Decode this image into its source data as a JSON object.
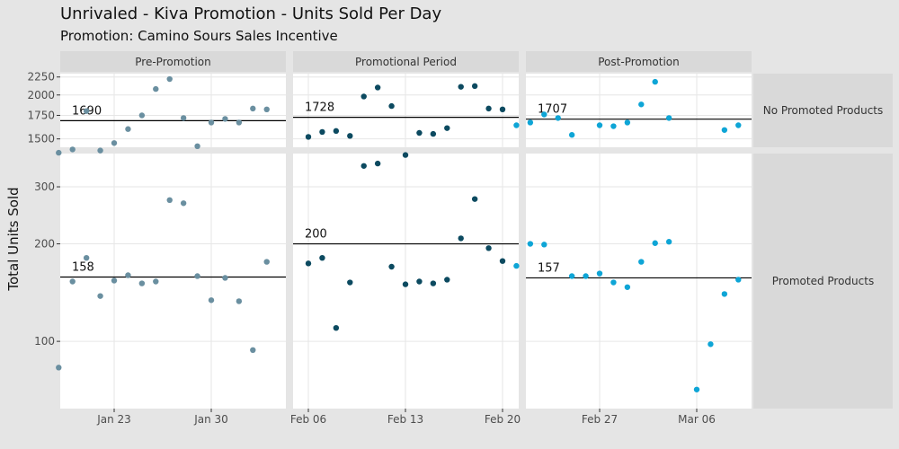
{
  "chart_data": {
    "type": "scatter",
    "title": "Unrivaled - Kiva Promotion - Units Sold Per Day",
    "subtitle": "Promotion: Camino Sours Sales Incentive",
    "ylabel": "Total Units Sold",
    "xlabel": "",
    "y_scale": "log",
    "grid": true,
    "legend": "none",
    "columns": [
      "Pre-Promotion",
      "Promotional Period",
      "Post-Promotion"
    ],
    "rows": [
      "No Promoted Products",
      "Promoted Products"
    ],
    "x_ticks": [
      {
        "date": "2023-01-23",
        "label": "Jan 23"
      },
      {
        "date": "2023-01-30",
        "label": "Jan 30"
      },
      {
        "date": "2023-02-06",
        "label": "Feb 06"
      },
      {
        "date": "2023-02-13",
        "label": "Feb 13"
      },
      {
        "date": "2023-02-20",
        "label": "Feb 20"
      },
      {
        "date": "2023-02-27",
        "label": "Feb 27"
      },
      {
        "date": "2023-03-06",
        "label": "Mar 06"
      }
    ],
    "row_scales": [
      {
        "ylim": [
          1420,
          2300
        ],
        "ticks": [
          1500,
          1750,
          2000,
          2250
        ],
        "tick_labels": [
          "1500",
          "1750",
          "2000",
          "2250"
        ]
      },
      {
        "ylim": [
          62,
          380
        ],
        "ticks": [
          100,
          200,
          300
        ],
        "tick_labels": [
          "100",
          "200",
          "300"
        ]
      }
    ],
    "colors": {
      "Pre-Promotion": "#6a8fa0",
      "Promotional Period": "#0c4a60",
      "Post-Promotion": "#0ea5d6"
    },
    "panels": [
      {
        "row": "No Promoted Products",
        "column": "Pre-Promotion",
        "mean": 1690,
        "mean_label": "1690",
        "x": [
          "2023-01-19",
          "2023-01-20",
          "2023-01-21",
          "2023-01-22",
          "2023-01-23",
          "2023-01-24",
          "2023-01-25",
          "2023-01-26",
          "2023-01-27",
          "2023-01-28",
          "2023-01-29",
          "2023-01-30",
          "2023-01-31",
          "2023-02-01",
          "2023-02-02",
          "2023-02-03"
        ],
        "y": [
          1370,
          1400,
          1800,
          1390,
          1460,
          1600,
          1750,
          2080,
          2220,
          1720,
          1430,
          1670,
          1710,
          1670,
          1830,
          1820
        ]
      },
      {
        "row": "No Promoted Products",
        "column": "Promotional Period",
        "mean": 1728,
        "mean_label": "1728",
        "x": [
          "2023-02-06",
          "2023-02-07",
          "2023-02-08",
          "2023-02-09",
          "2023-02-10",
          "2023-02-11",
          "2023-02-12",
          "2023-02-13",
          "2023-02-14",
          "2023-02-15",
          "2023-02-16",
          "2023-02-17",
          "2023-02-18",
          "2023-02-19",
          "2023-02-20"
        ],
        "y": [
          1520,
          1570,
          1580,
          1530,
          1980,
          2100,
          1860,
          1350,
          1560,
          1550,
          1610,
          2110,
          2120,
          1830,
          1820
        ]
      },
      {
        "row": "No Promoted Products",
        "column": "Post-Promotion",
        "mean": 1707,
        "mean_label": "1707",
        "x": [
          "2023-02-21",
          "2023-02-22",
          "2023-02-23",
          "2023-02-24",
          "2023-02-25",
          "2023-02-26",
          "2023-02-27",
          "2023-02-28",
          "2023-03-01",
          "2023-03-02",
          "2023-03-03",
          "2023-03-04",
          "2023-03-05",
          "2023-03-06",
          "2023-03-07",
          "2023-03-08",
          "2023-03-09"
        ],
        "y": [
          1640,
          1670,
          1760,
          1720,
          1540,
          null,
          1640,
          1630,
          1670,
          1880,
          2180,
          1720,
          null,
          null,
          null,
          1590,
          1640
        ]
      },
      {
        "row": "Promoted Products",
        "column": "Pre-Promotion",
        "mean": 158,
        "mean_label": "158",
        "x": [
          "2023-01-19",
          "2023-01-20",
          "2023-01-21",
          "2023-01-22",
          "2023-01-23",
          "2023-01-24",
          "2023-01-25",
          "2023-01-26",
          "2023-01-27",
          "2023-01-28",
          "2023-01-29",
          "2023-01-30",
          "2023-01-31",
          "2023-02-01",
          "2023-02-02",
          "2023-02-03"
        ],
        "y": [
          83,
          153,
          181,
          138,
          154,
          160,
          151,
          153,
          273,
          267,
          159,
          134,
          157,
          133,
          94,
          176
        ]
      },
      {
        "row": "Promoted Products",
        "column": "Promotional Period",
        "mean": 200,
        "mean_label": "200",
        "x": [
          "2023-02-06",
          "2023-02-07",
          "2023-02-08",
          "2023-02-09",
          "2023-02-10",
          "2023-02-11",
          "2023-02-12",
          "2023-02-13",
          "2023-02-14",
          "2023-02-15",
          "2023-02-16",
          "2023-02-17",
          "2023-02-18",
          "2023-02-19",
          "2023-02-20"
        ],
        "y": [
          174,
          181,
          110,
          152,
          348,
          354,
          170,
          150,
          153,
          151,
          155,
          208,
          275,
          194,
          177
        ]
      },
      {
        "row": "Promoted Products",
        "column": "Post-Promotion",
        "mean": 157,
        "mean_label": "157",
        "x": [
          "2023-02-21",
          "2023-02-22",
          "2023-02-23",
          "2023-02-24",
          "2023-02-25",
          "2023-02-26",
          "2023-02-27",
          "2023-02-28",
          "2023-03-01",
          "2023-03-02",
          "2023-03-03",
          "2023-03-04",
          "2023-03-05",
          "2023-03-06",
          "2023-03-07",
          "2023-03-08",
          "2023-03-09"
        ],
        "y": [
          171,
          200,
          199,
          null,
          159,
          159,
          162,
          152,
          147,
          176,
          201,
          203,
          null,
          71,
          98,
          140,
          155
        ]
      }
    ]
  }
}
